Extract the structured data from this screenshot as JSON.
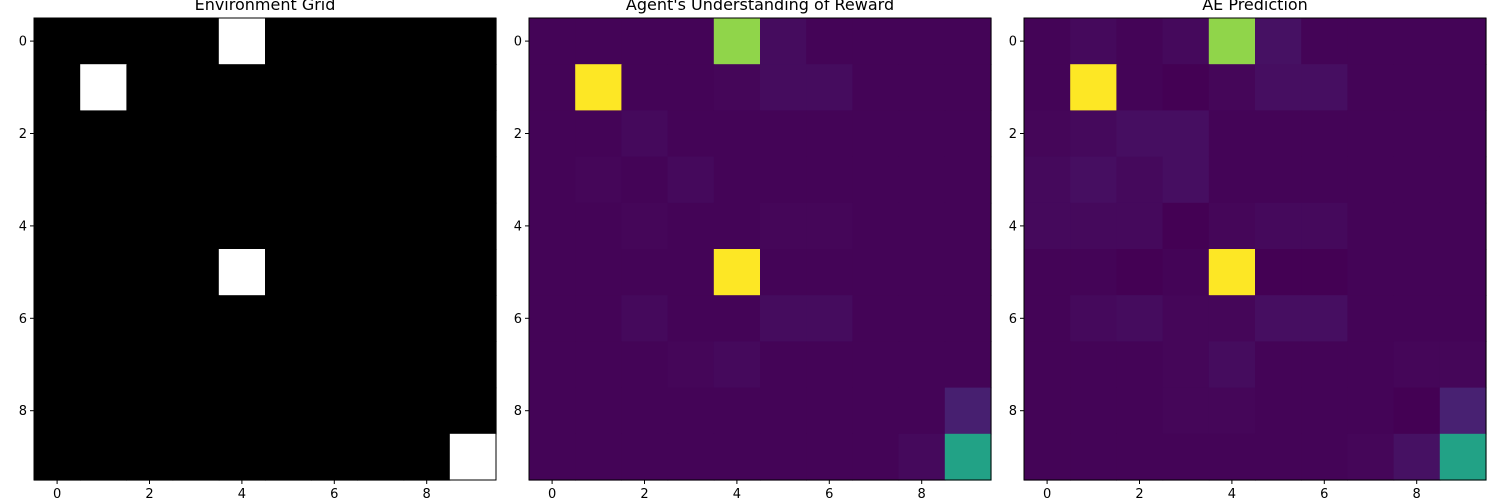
{
  "chart_data": [
    {
      "type": "heatmap",
      "title": "Environment Grid",
      "colormap": "gray",
      "vmin": 0,
      "vmax": 1,
      "x_ticks": [
        0,
        2,
        4,
        6,
        8
      ],
      "y_ticks": [
        0,
        2,
        4,
        6,
        8
      ],
      "xlim": [
        -0.5,
        9.5
      ],
      "ylim": [
        9.5,
        -0.5
      ],
      "grid": false,
      "values": [
        [
          0,
          0,
          0,
          0,
          1,
          0,
          0,
          0,
          0,
          0
        ],
        [
          0,
          1,
          0,
          0,
          0,
          0,
          0,
          0,
          0,
          0
        ],
        [
          0,
          0,
          0,
          0,
          0,
          0,
          0,
          0,
          0,
          0
        ],
        [
          0,
          0,
          0,
          0,
          0,
          0,
          0,
          0,
          0,
          0
        ],
        [
          0,
          0,
          0,
          0,
          0,
          0,
          0,
          0,
          0,
          0
        ],
        [
          0,
          0,
          0,
          0,
          1,
          0,
          0,
          0,
          0,
          0
        ],
        [
          0,
          0,
          0,
          0,
          0,
          0,
          0,
          0,
          0,
          0
        ],
        [
          0,
          0,
          0,
          0,
          0,
          0,
          0,
          0,
          0,
          0
        ],
        [
          0,
          0,
          0,
          0,
          0,
          0,
          0,
          0,
          0,
          0
        ],
        [
          0,
          0,
          0,
          0,
          0,
          0,
          0,
          0,
          0,
          1
        ]
      ]
    },
    {
      "type": "heatmap",
      "title": "Agent's Understanding of Reward",
      "colormap": "viridis",
      "vmin": 0,
      "vmax": 1,
      "x_ticks": [
        0,
        2,
        4,
        6,
        8
      ],
      "y_ticks": [
        0,
        2,
        4,
        6,
        8
      ],
      "xlim": [
        -0.5,
        9.5
      ],
      "ylim": [
        9.5,
        -0.5
      ],
      "grid": false,
      "values": [
        [
          0.01,
          0.01,
          0.01,
          0.01,
          0.9,
          0.04,
          0.01,
          0.01,
          0.01,
          0.01
        ],
        [
          0.01,
          1.0,
          0.01,
          0.01,
          0.02,
          0.04,
          0.04,
          0.01,
          0.01,
          0.01
        ],
        [
          0.01,
          0.01,
          0.03,
          0.01,
          0.01,
          0.01,
          0.01,
          0.01,
          0.01,
          0.01
        ],
        [
          0.01,
          0.02,
          0.01,
          0.03,
          0.01,
          0.01,
          0.01,
          0.01,
          0.01,
          0.01
        ],
        [
          0.01,
          0.01,
          0.02,
          0.01,
          0.01,
          0.02,
          0.02,
          0.01,
          0.01,
          0.01
        ],
        [
          0.01,
          0.01,
          0.01,
          0.01,
          1.0,
          0.01,
          0.01,
          0.01,
          0.01,
          0.01
        ],
        [
          0.01,
          0.01,
          0.03,
          0.01,
          0.01,
          0.04,
          0.04,
          0.01,
          0.01,
          0.01
        ],
        [
          0.01,
          0.01,
          0.01,
          0.02,
          0.03,
          0.01,
          0.01,
          0.01,
          0.01,
          0.01
        ],
        [
          0.01,
          0.01,
          0.01,
          0.01,
          0.01,
          0.01,
          0.01,
          0.01,
          0.01,
          0.11
        ],
        [
          0.01,
          0.01,
          0.01,
          0.01,
          0.01,
          0.01,
          0.01,
          0.01,
          0.03,
          0.72
        ]
      ]
    },
    {
      "type": "heatmap",
      "title": "AE Prediction",
      "colormap": "viridis",
      "vmin": 0,
      "vmax": 1,
      "x_ticks": [
        0,
        2,
        4,
        6,
        8
      ],
      "y_ticks": [
        0,
        2,
        4,
        6,
        8
      ],
      "xlim": [
        -0.5,
        9.5
      ],
      "ylim": [
        9.5,
        -0.5
      ],
      "grid": false,
      "values": [
        [
          0.01,
          0.03,
          0.01,
          0.03,
          0.9,
          0.06,
          0.01,
          0.01,
          0.01,
          0.01
        ],
        [
          0.01,
          1.0,
          0.01,
          0.0,
          0.02,
          0.05,
          0.05,
          0.01,
          0.01,
          0.01
        ],
        [
          0.02,
          0.03,
          0.05,
          0.05,
          0.01,
          0.01,
          0.01,
          0.01,
          0.01,
          0.01
        ],
        [
          0.03,
          0.05,
          0.03,
          0.05,
          0.01,
          0.01,
          0.01,
          0.01,
          0.01,
          0.01
        ],
        [
          0.03,
          0.03,
          0.03,
          0.0,
          0.02,
          0.03,
          0.03,
          0.01,
          0.01,
          0.01
        ],
        [
          0.01,
          0.01,
          0.0,
          0.01,
          1.0,
          0.0,
          0.0,
          0.01,
          0.01,
          0.01
        ],
        [
          0.01,
          0.03,
          0.04,
          0.02,
          0.02,
          0.05,
          0.05,
          0.01,
          0.01,
          0.01
        ],
        [
          0.01,
          0.01,
          0.01,
          0.02,
          0.04,
          0.01,
          0.01,
          0.01,
          0.02,
          0.02
        ],
        [
          0.01,
          0.01,
          0.01,
          0.02,
          0.02,
          0.01,
          0.01,
          0.01,
          0.0,
          0.12
        ],
        [
          0.01,
          0.01,
          0.01,
          0.01,
          0.01,
          0.01,
          0.01,
          0.02,
          0.06,
          0.72
        ]
      ]
    }
  ]
}
